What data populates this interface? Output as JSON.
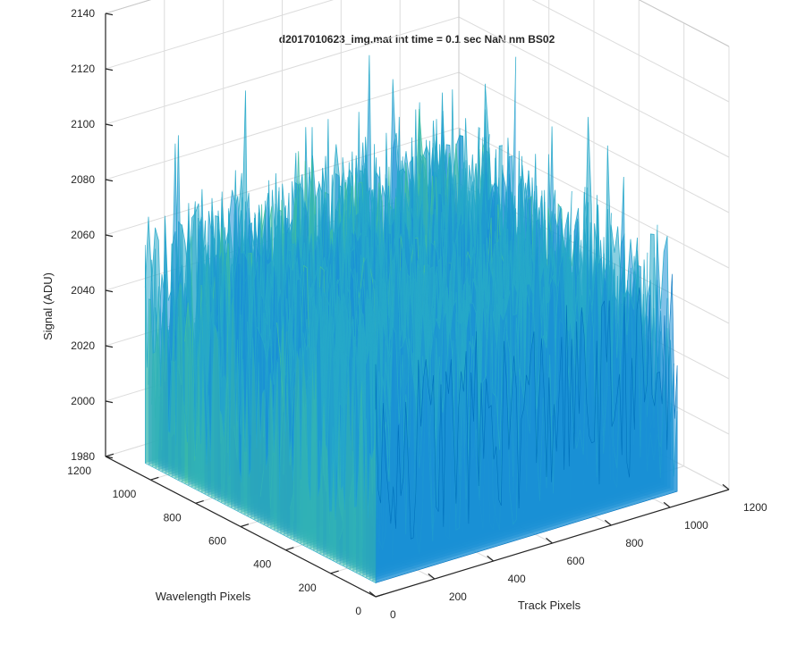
{
  "chart_data": {
    "type": "surface",
    "title": "d2017010623_img.mat int time = 0.1 sec  NaN nm BS02",
    "xlabel": "Track Pixels",
    "ylabel": "Wavelength Pixels",
    "zlabel": "Signal (ADU)",
    "xlim": [
      0,
      1200
    ],
    "ylim": [
      0,
      1200
    ],
    "zlim": [
      1980,
      2140
    ],
    "x_ticks": [
      "0",
      "200",
      "400",
      "600",
      "800",
      "1000",
      "1200"
    ],
    "y_ticks": [
      "0",
      "200",
      "400",
      "600",
      "800",
      "1000",
      "1200"
    ],
    "z_ticks": [
      "1980",
      "2000",
      "2020",
      "2040",
      "2060",
      "2080",
      "2100",
      "2120",
      "2140"
    ],
    "data_extent": {
      "x": [
        0,
        1024
      ],
      "y": [
        0,
        1024
      ]
    },
    "signal_baseline": 2030,
    "signal_range": [
      1985,
      2130
    ],
    "grid": true,
    "colormap": "parula",
    "colors": [
      "#0072bd",
      "#1a8fd6",
      "#26a8c9",
      "#3fbfa0",
      "#8fc96a",
      "#d6bf3f"
    ]
  }
}
